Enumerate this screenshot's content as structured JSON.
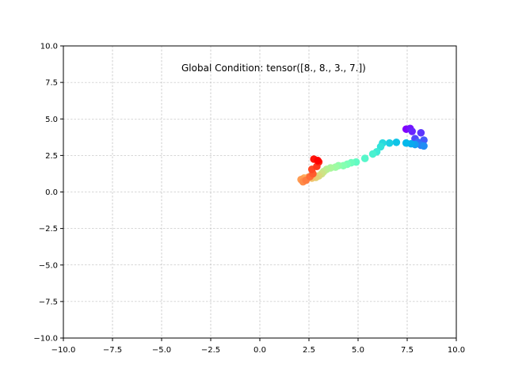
{
  "chart_data": {
    "type": "scatter",
    "title": "",
    "xlabel": "",
    "ylabel": "",
    "xlim": [
      -10,
      10
    ],
    "ylim": [
      -10,
      10
    ],
    "grid": true,
    "annotation": "Global Condition: tensor([8., 8., 3., 7.])",
    "colormap": "rainbow",
    "xticks": [
      -10,
      -7.5,
      -5,
      -2.5,
      0,
      2.5,
      5,
      7.5,
      10
    ],
    "yticks": [
      -10,
      -7.5,
      -5,
      -2.5,
      0,
      2.5,
      5,
      7.5,
      10
    ],
    "xtick_labels": [
      "−10.0",
      "−7.5",
      "−5.0",
      "−2.5",
      "0.0",
      "2.5",
      "5.0",
      "7.5",
      "10.0"
    ],
    "ytick_labels": [
      "−10.0",
      "−7.5",
      "−5.0",
      "−2.5",
      "0.0",
      "2.5",
      "5.0",
      "7.5",
      "10.0"
    ],
    "points": [
      {
        "x": 7.45,
        "y": 4.3
      },
      {
        "x": 7.65,
        "y": 4.35
      },
      {
        "x": 7.75,
        "y": 4.15
      },
      {
        "x": 8.2,
        "y": 4.05
      },
      {
        "x": 7.9,
        "y": 3.65
      },
      {
        "x": 8.35,
        "y": 3.55
      },
      {
        "x": 8.05,
        "y": 3.4
      },
      {
        "x": 8.2,
        "y": 3.2
      },
      {
        "x": 8.35,
        "y": 3.15
      },
      {
        "x": 7.9,
        "y": 3.25
      },
      {
        "x": 7.7,
        "y": 3.3
      },
      {
        "x": 7.45,
        "y": 3.35
      },
      {
        "x": 6.95,
        "y": 3.4
      },
      {
        "x": 6.6,
        "y": 3.35
      },
      {
        "x": 6.25,
        "y": 3.35
      },
      {
        "x": 6.15,
        "y": 3.1
      },
      {
        "x": 5.95,
        "y": 2.75
      },
      {
        "x": 5.75,
        "y": 2.6
      },
      {
        "x": 5.35,
        "y": 2.3
      },
      {
        "x": 4.9,
        "y": 2.05
      },
      {
        "x": 4.65,
        "y": 2.0
      },
      {
        "x": 4.45,
        "y": 1.9
      },
      {
        "x": 4.25,
        "y": 1.8
      },
      {
        "x": 4.0,
        "y": 1.8
      },
      {
        "x": 3.85,
        "y": 1.7
      },
      {
        "x": 3.6,
        "y": 1.65
      },
      {
        "x": 3.4,
        "y": 1.55
      },
      {
        "x": 3.25,
        "y": 1.4
      },
      {
        "x": 3.15,
        "y": 1.25
      },
      {
        "x": 3.0,
        "y": 1.1
      },
      {
        "x": 2.85,
        "y": 1.0
      },
      {
        "x": 2.65,
        "y": 0.95
      },
      {
        "x": 2.45,
        "y": 1.0
      },
      {
        "x": 2.25,
        "y": 0.95
      },
      {
        "x": 2.1,
        "y": 0.85
      },
      {
        "x": 2.2,
        "y": 0.7
      },
      {
        "x": 2.35,
        "y": 0.8
      },
      {
        "x": 2.55,
        "y": 1.05
      },
      {
        "x": 2.7,
        "y": 1.25
      },
      {
        "x": 2.65,
        "y": 1.55
      },
      {
        "x": 2.9,
        "y": 1.75
      },
      {
        "x": 3.0,
        "y": 2.05
      },
      {
        "x": 2.75,
        "y": 2.25
      },
      {
        "x": 2.95,
        "y": 2.15
      }
    ],
    "colors": {
      "grid": "#b0b0b0",
      "axes": "#000000",
      "background": "#ffffff"
    }
  }
}
